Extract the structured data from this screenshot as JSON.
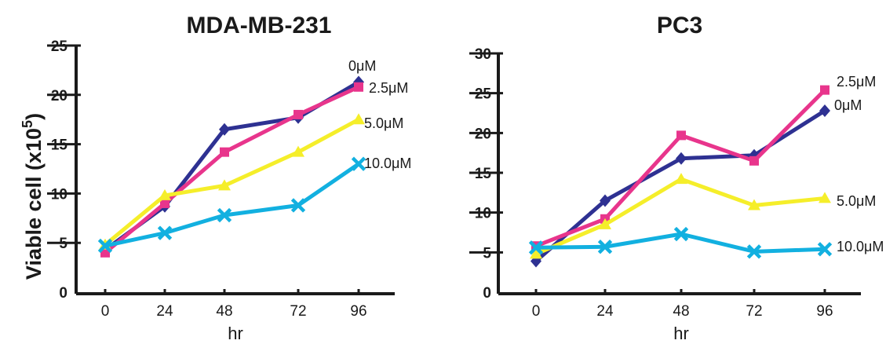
{
  "colors": {
    "0uM": "#2e3192",
    "2.5uM": "#e8358c",
    "5.0uM": "#f5ee2a",
    "10.0uM": "#12b0e0",
    "axis": "#1a1a1a"
  },
  "y_axis_title": {
    "main": "Viable cell (x10",
    "superscript": "5",
    "close": ")"
  },
  "chart_data": [
    {
      "type": "line",
      "title": "MDA-MB-231",
      "xlabel": "hr",
      "ylabel": "Viable cell (x10^5)",
      "x": [
        0,
        24,
        48,
        72,
        96
      ],
      "xticks": [
        "0",
        "24",
        "48",
        "72",
        "96"
      ],
      "ylim": [
        0,
        25
      ],
      "yticks": [
        "0",
        "5",
        "10",
        "15",
        "20",
        "25"
      ],
      "grid": false,
      "series": [
        {
          "name": "0μM",
          "color_key": "0uM",
          "marker": "diamond",
          "values": [
            4.3,
            8.7,
            16.5,
            17.7,
            21.3
          ]
        },
        {
          "name": "2.5μM",
          "color_key": "2.5uM",
          "marker": "square",
          "values": [
            4.0,
            9.0,
            14.2,
            18.0,
            20.8
          ]
        },
        {
          "name": "5.0μM",
          "color_key": "5.0uM",
          "marker": "triangle",
          "values": [
            4.8,
            9.8,
            10.8,
            14.2,
            17.5
          ]
        },
        {
          "name": "10.0μM",
          "color_key": "10.0uM",
          "marker": "x",
          "values": [
            4.7,
            6.0,
            7.8,
            8.8,
            13.0
          ]
        }
      ]
    },
    {
      "type": "line",
      "title": "PC3",
      "xlabel": "hr",
      "ylabel": "",
      "x": [
        0,
        24,
        48,
        72,
        96
      ],
      "xticks": [
        "0",
        "24",
        "48",
        "72",
        "96"
      ],
      "ylim": [
        0,
        30
      ],
      "yticks": [
        "0",
        "5",
        "10",
        "15",
        "20",
        "25",
        "30"
      ],
      "grid": false,
      "series": [
        {
          "name": "0μM",
          "color_key": "0uM",
          "marker": "diamond",
          "values": [
            3.9,
            11.5,
            16.8,
            17.2,
            22.8
          ]
        },
        {
          "name": "2.5μM",
          "color_key": "2.5uM",
          "marker": "square",
          "values": [
            5.8,
            9.2,
            19.7,
            16.5,
            25.4
          ]
        },
        {
          "name": "5.0μM",
          "color_key": "5.0uM",
          "marker": "triangle",
          "values": [
            4.8,
            8.5,
            14.2,
            10.9,
            11.8
          ]
        },
        {
          "name": "10.0μM",
          "color_key": "10.0uM",
          "marker": "x",
          "values": [
            5.6,
            5.7,
            7.3,
            5.1,
            5.4
          ]
        }
      ]
    }
  ]
}
